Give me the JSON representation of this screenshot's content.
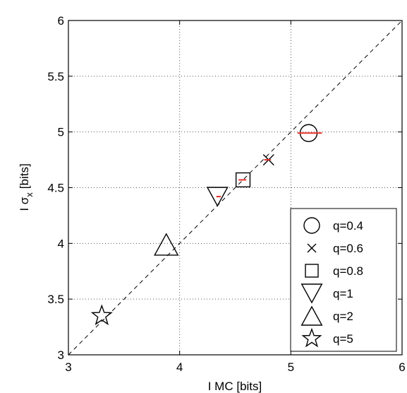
{
  "chart_data": {
    "type": "scatter",
    "xlabel": "I MC [bits]",
    "ylabel_main": "I σ",
    "ylabel_sub": "x",
    "ylabel_unit": "[bits]",
    "xlim": [
      3,
      6
    ],
    "ylim": [
      3,
      6
    ],
    "xticks": [
      3,
      4,
      5,
      6
    ],
    "yticks": [
      3,
      3.5,
      4,
      4.5,
      5,
      5.5,
      6
    ],
    "xtick_labels": [
      "3",
      "4",
      "5",
      "6"
    ],
    "ytick_labels": [
      "3",
      "3.5",
      "4",
      "4.5",
      "5",
      "5.5",
      "6"
    ],
    "grid": true,
    "reference_line": {
      "style": "dashed",
      "from": [
        3,
        3
      ],
      "to": [
        6,
        6
      ]
    },
    "legend_position": "bottom-right",
    "series": [
      {
        "name": "q=0.4",
        "marker": "circle",
        "x": 5.16,
        "y": 4.99,
        "error_x": [
          5.06,
          5.28
        ],
        "error_color": "#e8302a"
      },
      {
        "name": "q=0.6",
        "marker": "x",
        "x": 4.8,
        "y": 4.75,
        "error_x": [
          4.76,
          4.82
        ],
        "error_color": "#e8302a"
      },
      {
        "name": "q=0.8",
        "marker": "square",
        "x": 4.57,
        "y": 4.57,
        "error_x": [
          4.53,
          4.6
        ],
        "error_color": "#e8302a"
      },
      {
        "name": "q=1",
        "marker": "triangle-down",
        "x": 4.34,
        "y": 4.42,
        "error_x": [
          4.33,
          4.37
        ],
        "error_color": "#e8302a"
      },
      {
        "name": "q=2",
        "marker": "triangle-up",
        "x": 3.88,
        "y": 3.99
      },
      {
        "name": "q=5",
        "marker": "star",
        "x": 3.3,
        "y": 3.35
      }
    ]
  }
}
